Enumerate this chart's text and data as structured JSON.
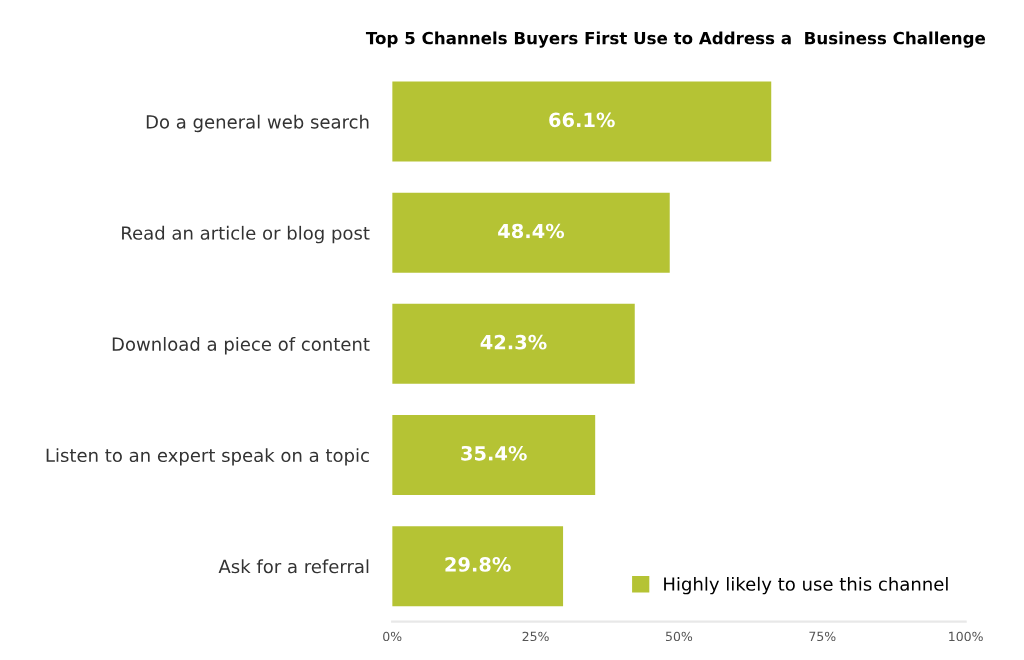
{
  "chart_data": {
    "type": "bar",
    "orientation": "horizontal",
    "title": "Top 5 Channels Buyers First Use to Address a  Business Challenge",
    "categories": [
      "Do a general web search",
      "Read an article or blog post",
      "Download a piece of content",
      "Listen to an expert speak on a topic",
      "Ask for a referral"
    ],
    "series": [
      {
        "name": "Highly likely to use this channel",
        "color": "#b5c334",
        "values": [
          66.1,
          48.4,
          42.3,
          35.4,
          29.8
        ],
        "value_labels": [
          "66.1%",
          "48.4%",
          "42.3%",
          "35.4%",
          "29.8%"
        ]
      }
    ],
    "xlim": [
      0,
      100
    ],
    "xticks": [
      {
        "value": 0,
        "label": "0%"
      },
      {
        "value": 25,
        "label": "25%"
      },
      {
        "value": 50,
        "label": "50%"
      },
      {
        "value": 75,
        "label": "75%"
      },
      {
        "value": 100,
        "label": "100%"
      }
    ],
    "legend": "bottom right",
    "grid": false
  }
}
